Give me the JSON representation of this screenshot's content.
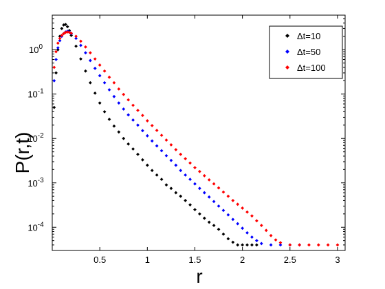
{
  "chart_data": {
    "type": "scatter",
    "xlabel": "r",
    "ylabel": "P(r,t)",
    "xscale": "linear",
    "yscale": "log",
    "xlim": [
      0.0,
      3.08
    ],
    "ylim": [
      3e-05,
      6
    ],
    "xticks": [
      0.5,
      1,
      1.5,
      2,
      2.5,
      3
    ],
    "xtick_labels": [
      "0.5",
      "1",
      "1.5",
      "2",
      "2.5",
      "3"
    ],
    "yticks": [
      0.0001,
      0.001,
      0.01,
      0.1,
      1
    ],
    "ytick_labels": [
      {
        "base": "10",
        "exp": "-4"
      },
      {
        "base": "10",
        "exp": "-3"
      },
      {
        "base": "10",
        "exp": "-2"
      },
      {
        "base": "10",
        "exp": "-1"
      },
      {
        "base": "10",
        "exp": "0"
      }
    ],
    "grid": false,
    "legend_position": "top-right",
    "series": [
      {
        "name": "Δt=10",
        "color": "#000000",
        "points": [
          [
            0.02,
            0.05
          ],
          [
            0.04,
            0.3
          ],
          [
            0.06,
            1.0
          ],
          [
            0.08,
            2.0
          ],
          [
            0.1,
            3.0
          ],
          [
            0.12,
            3.6
          ],
          [
            0.14,
            3.7
          ],
          [
            0.16,
            3.3
          ],
          [
            0.18,
            2.7
          ],
          [
            0.2,
            2.1
          ],
          [
            0.25,
            1.2
          ],
          [
            0.3,
            0.62
          ],
          [
            0.35,
            0.33
          ],
          [
            0.4,
            0.18
          ],
          [
            0.45,
            0.105
          ],
          [
            0.5,
            0.063
          ],
          [
            0.55,
            0.04
          ],
          [
            0.6,
            0.027
          ],
          [
            0.65,
            0.019
          ],
          [
            0.7,
            0.014
          ],
          [
            0.75,
            0.01
          ],
          [
            0.8,
            0.0075
          ],
          [
            0.85,
            0.0058
          ],
          [
            0.9,
            0.0044
          ],
          [
            0.95,
            0.0033
          ],
          [
            1.0,
            0.0025
          ],
          [
            1.05,
            0.0019
          ],
          [
            1.1,
            0.0015
          ],
          [
            1.15,
            0.0012
          ],
          [
            1.2,
            0.0009
          ],
          [
            1.25,
            0.00075
          ],
          [
            1.3,
            0.0006
          ],
          [
            1.35,
            0.0005
          ],
          [
            1.4,
            0.0004
          ],
          [
            1.45,
            0.00032
          ],
          [
            1.5,
            0.00025
          ],
          [
            1.55,
            0.0002
          ],
          [
            1.6,
            0.00016
          ],
          [
            1.65,
            0.00013
          ],
          [
            1.7,
            0.00011
          ],
          [
            1.75,
            9e-05
          ],
          [
            1.8,
            7e-05
          ],
          [
            1.85,
            5.5e-05
          ],
          [
            1.9,
            4.6e-05
          ],
          [
            1.95,
            4e-05
          ],
          [
            2.0,
            4e-05
          ],
          [
            2.05,
            4e-05
          ],
          [
            2.1,
            4e-05
          ],
          [
            2.15,
            4e-05
          ]
        ]
      },
      {
        "name": "Δt=50",
        "color": "#0000ff",
        "points": [
          [
            0.02,
            0.2
          ],
          [
            0.04,
            0.6
          ],
          [
            0.06,
            1.1
          ],
          [
            0.08,
            1.6
          ],
          [
            0.1,
            2.0
          ],
          [
            0.12,
            2.3
          ],
          [
            0.14,
            2.5
          ],
          [
            0.16,
            2.6
          ],
          [
            0.18,
            2.5
          ],
          [
            0.2,
            2.3
          ],
          [
            0.25,
            1.8
          ],
          [
            0.3,
            1.25
          ],
          [
            0.35,
            0.85
          ],
          [
            0.4,
            0.57
          ],
          [
            0.45,
            0.38
          ],
          [
            0.5,
            0.26
          ],
          [
            0.55,
            0.18
          ],
          [
            0.6,
            0.125
          ],
          [
            0.65,
            0.088
          ],
          [
            0.7,
            0.063
          ],
          [
            0.75,
            0.046
          ],
          [
            0.8,
            0.034
          ],
          [
            0.85,
            0.026
          ],
          [
            0.9,
            0.02
          ],
          [
            0.95,
            0.015
          ],
          [
            1.0,
            0.0115
          ],
          [
            1.05,
            0.0088
          ],
          [
            1.1,
            0.0068
          ],
          [
            1.15,
            0.0053
          ],
          [
            1.2,
            0.0041
          ],
          [
            1.25,
            0.0032
          ],
          [
            1.3,
            0.0025
          ],
          [
            1.35,
            0.0019
          ],
          [
            1.4,
            0.0015
          ],
          [
            1.45,
            0.0012
          ],
          [
            1.5,
            0.00095
          ],
          [
            1.55,
            0.00075
          ],
          [
            1.6,
            0.0006
          ],
          [
            1.65,
            0.00048
          ],
          [
            1.7,
            0.00038
          ],
          [
            1.75,
            0.0003
          ],
          [
            1.8,
            0.00024
          ],
          [
            1.85,
            0.00019
          ],
          [
            1.9,
            0.00015
          ],
          [
            1.95,
            0.00012
          ],
          [
            2.0,
            9.5e-05
          ],
          [
            2.05,
            7.5e-05
          ],
          [
            2.1,
            6e-05
          ],
          [
            2.15,
            5e-05
          ],
          [
            2.2,
            4.3e-05
          ],
          [
            2.3,
            4e-05
          ],
          [
            2.4,
            4e-05
          ],
          [
            2.5,
            4e-05
          ],
          [
            2.6,
            4e-05
          ]
        ]
      },
      {
        "name": "Δt=100",
        "color": "#ff0000",
        "points": [
          [
            0.02,
            0.4
          ],
          [
            0.04,
            0.9
          ],
          [
            0.06,
            1.4
          ],
          [
            0.08,
            1.8
          ],
          [
            0.1,
            2.1
          ],
          [
            0.12,
            2.3
          ],
          [
            0.14,
            2.45
          ],
          [
            0.16,
            2.5
          ],
          [
            0.18,
            2.45
          ],
          [
            0.2,
            2.35
          ],
          [
            0.25,
            2.0
          ],
          [
            0.3,
            1.55
          ],
          [
            0.35,
            1.15
          ],
          [
            0.4,
            0.85
          ],
          [
            0.45,
            0.62
          ],
          [
            0.5,
            0.45
          ],
          [
            0.55,
            0.33
          ],
          [
            0.6,
            0.24
          ],
          [
            0.65,
            0.18
          ],
          [
            0.7,
            0.13
          ],
          [
            0.75,
            0.098
          ],
          [
            0.8,
            0.074
          ],
          [
            0.85,
            0.056
          ],
          [
            0.9,
            0.043
          ],
          [
            0.95,
            0.033
          ],
          [
            1.0,
            0.025
          ],
          [
            1.05,
            0.0195
          ],
          [
            1.1,
            0.0152
          ],
          [
            1.15,
            0.0118
          ],
          [
            1.2,
            0.0092
          ],
          [
            1.25,
            0.0072
          ],
          [
            1.3,
            0.0056
          ],
          [
            1.35,
            0.0044
          ],
          [
            1.4,
            0.0035
          ],
          [
            1.45,
            0.0028
          ],
          [
            1.5,
            0.0022
          ],
          [
            1.55,
            0.0018
          ],
          [
            1.6,
            0.00145
          ],
          [
            1.65,
            0.00117
          ],
          [
            1.7,
            0.00095
          ],
          [
            1.75,
            0.00077
          ],
          [
            1.8,
            0.00062
          ],
          [
            1.85,
            0.0005
          ],
          [
            1.9,
            0.0004
          ],
          [
            1.95,
            0.00033
          ],
          [
            2.0,
            0.00027
          ],
          [
            2.05,
            0.00022
          ],
          [
            2.1,
            0.00018
          ],
          [
            2.15,
            0.00014
          ],
          [
            2.2,
            0.00011
          ],
          [
            2.25,
            8.5e-05
          ],
          [
            2.3,
            6.5e-05
          ],
          [
            2.35,
            5.2e-05
          ],
          [
            2.4,
            4.5e-05
          ],
          [
            2.5,
            4e-05
          ],
          [
            2.6,
            4e-05
          ],
          [
            2.7,
            4e-05
          ],
          [
            2.8,
            4e-05
          ],
          [
            2.9,
            4e-05
          ],
          [
            3.0,
            4e-05
          ]
        ]
      }
    ]
  }
}
